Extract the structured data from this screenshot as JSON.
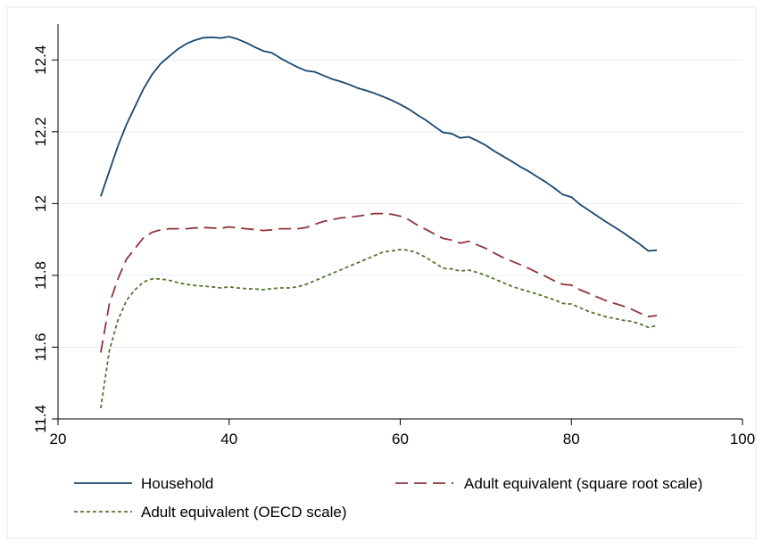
{
  "chart_data": {
    "type": "line",
    "title": "",
    "xlabel": "",
    "ylabel": "",
    "xlim": [
      20,
      100
    ],
    "ylim": [
      11.4,
      12.5
    ],
    "xticks": [
      20,
      40,
      60,
      80,
      100
    ],
    "yticks": [
      11.4,
      11.6,
      11.8,
      12,
      12.2,
      12.4
    ],
    "xtick_labels": [
      "20",
      "40",
      "60",
      "80",
      "100"
    ],
    "ytick_labels": [
      "11.4",
      "11.6",
      "11.8",
      "12",
      "12.2",
      "12.4"
    ],
    "grid": true,
    "legend_position": "bottom",
    "series": [
      {
        "name": "Household",
        "color": "#1a476f",
        "dash": "solid",
        "x": [
          25,
          26,
          27,
          28,
          29,
          30,
          31,
          32,
          33,
          34,
          35,
          36,
          37,
          38,
          39,
          40,
          41,
          42,
          43,
          44,
          45,
          46,
          47,
          48,
          49,
          50,
          51,
          52,
          53,
          54,
          55,
          56,
          57,
          58,
          59,
          60,
          61,
          62,
          63,
          64,
          65,
          66,
          67,
          68,
          69,
          70,
          71,
          72,
          73,
          74,
          75,
          76,
          77,
          78,
          79,
          80,
          81,
          82,
          83,
          84,
          85,
          86,
          87,
          88,
          89,
          90
        ],
        "y": [
          12.02,
          12.09,
          12.16,
          12.22,
          12.27,
          12.32,
          12.36,
          12.39,
          12.41,
          12.43,
          12.445,
          12.455,
          12.462,
          12.463,
          12.461,
          12.465,
          12.458,
          12.448,
          12.436,
          12.425,
          12.42,
          12.405,
          12.392,
          12.38,
          12.37,
          12.367,
          12.357,
          12.347,
          12.34,
          12.332,
          12.322,
          12.315,
          12.307,
          12.298,
          12.288,
          12.276,
          12.263,
          12.247,
          12.232,
          12.215,
          12.198,
          12.195,
          12.183,
          12.186,
          12.175,
          12.162,
          12.146,
          12.132,
          12.118,
          12.103,
          12.09,
          12.075,
          12.06,
          12.043,
          12.025,
          12.018,
          11.998,
          11.982,
          11.966,
          11.95,
          11.935,
          11.92,
          11.903,
          11.887,
          11.868,
          11.87
        ]
      },
      {
        "name": "Adult equivalent (square root scale)",
        "color": "#90353b",
        "dash": "long-dash",
        "x": [
          25,
          26,
          27,
          28,
          29,
          30,
          31,
          32,
          33,
          34,
          35,
          36,
          37,
          38,
          39,
          40,
          41,
          42,
          43,
          44,
          45,
          46,
          47,
          48,
          49,
          50,
          51,
          52,
          53,
          54,
          55,
          56,
          57,
          58,
          59,
          60,
          61,
          62,
          63,
          64,
          65,
          66,
          67,
          68,
          69,
          70,
          71,
          72,
          73,
          74,
          75,
          76,
          77,
          78,
          79,
          80,
          81,
          82,
          83,
          84,
          85,
          86,
          87,
          88,
          89,
          90
        ],
        "y": [
          11.585,
          11.72,
          11.79,
          11.845,
          11.875,
          11.905,
          11.92,
          11.927,
          11.93,
          11.93,
          11.93,
          11.932,
          11.933,
          11.932,
          11.931,
          11.935,
          11.932,
          11.93,
          11.928,
          11.925,
          11.927,
          11.93,
          11.93,
          11.93,
          11.933,
          11.942,
          11.95,
          11.955,
          11.96,
          11.962,
          11.965,
          11.968,
          11.972,
          11.972,
          11.97,
          11.965,
          11.955,
          11.94,
          11.928,
          11.915,
          11.903,
          11.898,
          11.89,
          11.895,
          11.885,
          11.875,
          11.862,
          11.85,
          11.84,
          11.83,
          11.82,
          11.808,
          11.797,
          11.785,
          11.775,
          11.773,
          11.76,
          11.75,
          11.74,
          11.73,
          11.722,
          11.715,
          11.706,
          11.695,
          11.685,
          11.688
        ]
      },
      {
        "name": "Adult equivalent (OECD scale)",
        "color": "#55752f",
        "dash": "short-dash",
        "x": [
          25,
          26,
          27,
          28,
          29,
          30,
          31,
          32,
          33,
          34,
          35,
          36,
          37,
          38,
          39,
          40,
          41,
          42,
          43,
          44,
          45,
          46,
          47,
          48,
          49,
          50,
          51,
          52,
          53,
          54,
          55,
          56,
          57,
          58,
          59,
          60,
          61,
          62,
          63,
          64,
          65,
          66,
          67,
          68,
          69,
          70,
          71,
          72,
          73,
          74,
          75,
          76,
          77,
          78,
          79,
          80,
          81,
          82,
          83,
          84,
          85,
          86,
          87,
          88,
          89,
          90
        ],
        "y": [
          11.43,
          11.59,
          11.675,
          11.73,
          11.76,
          11.782,
          11.79,
          11.79,
          11.786,
          11.78,
          11.775,
          11.772,
          11.77,
          11.768,
          11.765,
          11.768,
          11.765,
          11.763,
          11.762,
          11.76,
          11.763,
          11.765,
          11.765,
          11.768,
          11.775,
          11.785,
          11.795,
          11.805,
          11.815,
          11.825,
          11.835,
          11.845,
          11.855,
          11.865,
          11.868,
          11.872,
          11.87,
          11.862,
          11.85,
          11.835,
          11.82,
          11.818,
          11.812,
          11.815,
          11.808,
          11.8,
          11.79,
          11.78,
          11.77,
          11.762,
          11.755,
          11.748,
          11.74,
          11.732,
          11.722,
          11.72,
          11.71,
          11.7,
          11.692,
          11.685,
          11.68,
          11.675,
          11.672,
          11.665,
          11.655,
          11.66
        ]
      }
    ]
  }
}
